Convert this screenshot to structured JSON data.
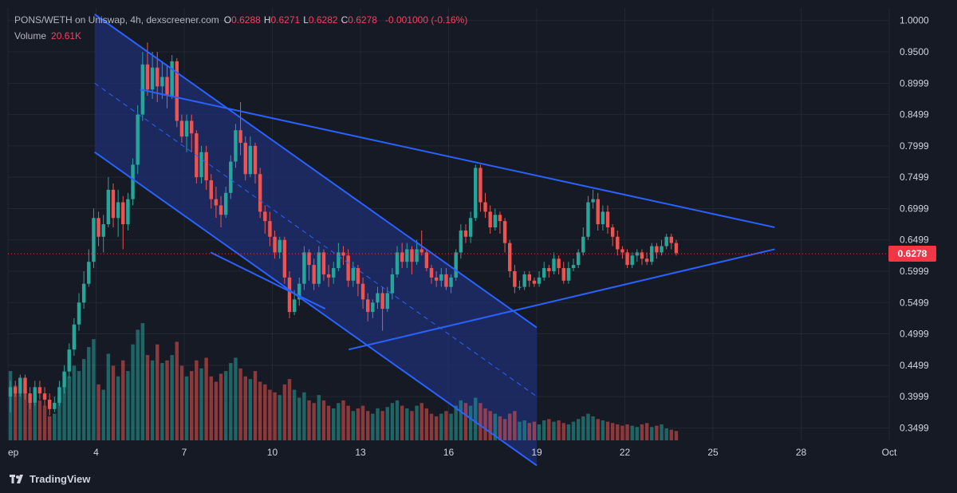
{
  "header": {
    "pair": "PONS/WETH on Uniswap, 4h, dexscreener.com",
    "ohlc": [
      {
        "key": "O",
        "value": "0.6288"
      },
      {
        "key": "H",
        "value": "0.6271"
      },
      {
        "key": "L",
        "value": "0.6282"
      },
      {
        "key": "C",
        "value": "0.6278"
      }
    ],
    "change": "-0.001000 (-0.16%)",
    "volume_label": "Volume",
    "volume_value": "20.61K"
  },
  "brand": "TradingView",
  "last_price_label": "0.6278",
  "colors": {
    "up": "#26a69a",
    "down": "#ef5350",
    "drawing": "#2962ff",
    "channel_fill": "#1e2f73",
    "price_tag": "#f23645",
    "background": "#161a25"
  },
  "chart_data": {
    "type": "candlestick",
    "timeframe": "4h",
    "last_price": 0.6278,
    "ylim": [
      0.33,
      1.02
    ],
    "y_ticks": [
      "1.0000",
      "0.9500",
      "0.8999",
      "0.8499",
      "0.7999",
      "0.7499",
      "0.6999",
      "0.6499",
      "0.5999",
      "0.5499",
      "0.4999",
      "0.4499",
      "0.3999",
      "0.3499"
    ],
    "x_ticks": [
      "ep",
      "4",
      "7",
      "10",
      "13",
      "16",
      "19",
      "22",
      "25",
      "28",
      "Oct"
    ],
    "x_range_days": [
      1,
      31
    ],
    "candles": [
      [
        0.3999,
        0.4149,
        0.3749,
        0.4249
      ],
      [
        0.4149,
        0.4049,
        0.3999,
        0.4249
      ],
      [
        0.4049,
        0.4299,
        0.3999,
        0.4349
      ],
      [
        0.4299,
        0.4049,
        0.3949,
        0.4349
      ],
      [
        0.4049,
        0.3899,
        0.3799,
        0.4149
      ],
      [
        0.3899,
        0.4149,
        0.3849,
        0.4249
      ],
      [
        0.4149,
        0.4049,
        0.3949,
        0.4249
      ],
      [
        0.4049,
        0.3949,
        0.3849,
        0.4149
      ],
      [
        0.3949,
        0.3799,
        0.3699,
        0.4049
      ],
      [
        0.3799,
        0.3899,
        0.3749,
        0.3999
      ],
      [
        0.3899,
        0.4149,
        0.3849,
        0.4249
      ],
      [
        0.4149,
        0.4399,
        0.4049,
        0.4499
      ],
      [
        0.4399,
        0.4749,
        0.4299,
        0.4849
      ],
      [
        0.4749,
        0.5149,
        0.4649,
        0.5249
      ],
      [
        0.5149,
        0.5499,
        0.5049,
        0.5649
      ],
      [
        0.5499,
        0.5799,
        0.5399,
        0.5999
      ],
      [
        0.5799,
        0.6149,
        0.5749,
        0.6349
      ],
      [
        0.6149,
        0.6849,
        0.6049,
        0.6999
      ],
      [
        0.6849,
        0.6549,
        0.6399,
        0.6949
      ],
      [
        0.6549,
        0.6749,
        0.6299,
        0.6899
      ],
      [
        0.6749,
        0.7299,
        0.6699,
        0.7499
      ],
      [
        0.7299,
        0.6849,
        0.6699,
        0.7399
      ],
      [
        0.6849,
        0.7099,
        0.6549,
        0.7299
      ],
      [
        0.7099,
        0.6749,
        0.6349,
        0.7199
      ],
      [
        0.6749,
        0.7149,
        0.6649,
        0.7249
      ],
      [
        0.7149,
        0.7699,
        0.7049,
        0.7799
      ],
      [
        0.7699,
        0.8499,
        0.7549,
        0.8649
      ],
      [
        0.8499,
        0.9299,
        0.8399,
        0.9499
      ],
      [
        0.9299,
        0.8899,
        0.8799,
        0.9649
      ],
      [
        0.8899,
        0.9249,
        0.8749,
        0.9499
      ],
      [
        0.9249,
        0.8949,
        0.8699,
        0.9499
      ],
      [
        0.8949,
        0.9099,
        0.8749,
        0.9349
      ],
      [
        0.9099,
        0.8799,
        0.8599,
        0.9299
      ],
      [
        0.8799,
        0.9349,
        0.8749,
        0.9449
      ],
      [
        0.9349,
        0.8399,
        0.8299,
        0.9399
      ],
      [
        0.8399,
        0.8149,
        0.8049,
        0.8499
      ],
      [
        0.8149,
        0.8399,
        0.7899,
        0.8499
      ],
      [
        0.8399,
        0.8199,
        0.7899,
        0.8499
      ],
      [
        0.8199,
        0.7499,
        0.7399,
        0.8249
      ],
      [
        0.7499,
        0.7899,
        0.7399,
        0.7999
      ],
      [
        0.7899,
        0.7449,
        0.7299,
        0.7999
      ],
      [
        0.7449,
        0.7149,
        0.6999,
        0.7549
      ],
      [
        0.7149,
        0.7049,
        0.6849,
        0.7349
      ],
      [
        0.7049,
        0.6899,
        0.6699,
        0.7199
      ],
      [
        0.6899,
        0.7249,
        0.6849,
        0.7349
      ],
      [
        0.7249,
        0.7749,
        0.7149,
        0.7849
      ],
      [
        0.7749,
        0.8249,
        0.7649,
        0.8349
      ],
      [
        0.8249,
        0.8049,
        0.7849,
        0.8699
      ],
      [
        0.8049,
        0.7549,
        0.7449,
        0.8149
      ],
      [
        0.7549,
        0.7999,
        0.7499,
        0.8149
      ],
      [
        0.7999,
        0.7549,
        0.7399,
        0.8049
      ],
      [
        0.7549,
        0.6949,
        0.6849,
        0.7649
      ],
      [
        0.6949,
        0.6799,
        0.6599,
        0.7049
      ],
      [
        0.6799,
        0.6549,
        0.6399,
        0.6949
      ],
      [
        0.6549,
        0.6299,
        0.6199,
        0.6649
      ],
      [
        0.6299,
        0.6499,
        0.6199,
        0.6549
      ],
      [
        0.6499,
        0.5899,
        0.5799,
        0.6549
      ],
      [
        0.5899,
        0.5349,
        0.5249,
        0.5999
      ],
      [
        0.5349,
        0.5549,
        0.5299,
        0.5699
      ],
      [
        0.5549,
        0.5799,
        0.5449,
        0.5899
      ],
      [
        0.5799,
        0.6299,
        0.5699,
        0.6399
      ],
      [
        0.6299,
        0.6099,
        0.5849,
        0.6349
      ],
      [
        0.6099,
        0.5799,
        0.5699,
        0.6199
      ],
      [
        0.5799,
        0.6299,
        0.5749,
        0.6399
      ],
      [
        0.6299,
        0.5949,
        0.5849,
        0.6349
      ],
      [
        0.5949,
        0.5899,
        0.5749,
        0.6099
      ],
      [
        0.5899,
        0.6049,
        0.5799,
        0.6149
      ],
      [
        0.6049,
        0.6299,
        0.5999,
        0.6449
      ],
      [
        0.6299,
        0.6249,
        0.6099,
        0.6399
      ],
      [
        0.6249,
        0.5849,
        0.5749,
        0.6349
      ],
      [
        0.5849,
        0.6049,
        0.5749,
        0.6149
      ],
      [
        0.6049,
        0.5799,
        0.5599,
        0.6099
      ],
      [
        0.5799,
        0.5549,
        0.5399,
        0.5899
      ],
      [
        0.5549,
        0.5349,
        0.5199,
        0.5649
      ],
      [
        0.5349,
        0.5499,
        0.5249,
        0.5549
      ],
      [
        0.5499,
        0.5649,
        0.5399,
        0.5749
      ],
      [
        0.5649,
        0.5399,
        0.5049,
        0.5749
      ],
      [
        0.5399,
        0.5649,
        0.5349,
        0.5749
      ],
      [
        0.5649,
        0.5949,
        0.5549,
        0.6049
      ],
      [
        0.5949,
        0.6299,
        0.5899,
        0.6399
      ],
      [
        0.6299,
        0.6149,
        0.6049,
        0.6449
      ],
      [
        0.6149,
        0.6349,
        0.6049,
        0.6449
      ],
      [
        0.6349,
        0.6149,
        0.5949,
        0.6399
      ],
      [
        0.6149,
        0.6349,
        0.6099,
        0.6499
      ],
      [
        0.6349,
        0.6299,
        0.6249,
        0.6649
      ],
      [
        0.6299,
        0.6049,
        0.5999,
        0.6349
      ],
      [
        0.6049,
        0.5899,
        0.5799,
        0.6099
      ],
      [
        0.5899,
        0.5849,
        0.5749,
        0.5999
      ],
      [
        0.5849,
        0.5949,
        0.5749,
        0.6049
      ],
      [
        0.5949,
        0.5749,
        0.5699,
        0.6049
      ],
      [
        0.5749,
        0.5899,
        0.5649,
        0.5949
      ],
      [
        0.5899,
        0.6299,
        0.5849,
        0.6349
      ],
      [
        0.6299,
        0.6649,
        0.6199,
        0.6749
      ],
      [
        0.6649,
        0.6549,
        0.6449,
        0.6749
      ],
      [
        0.6549,
        0.6849,
        0.6449,
        0.6949
      ],
      [
        0.6849,
        0.7649,
        0.6799,
        0.7699
      ],
      [
        0.7649,
        0.7099,
        0.6949,
        0.7699
      ],
      [
        0.7099,
        0.6949,
        0.6849,
        0.7249
      ],
      [
        0.6949,
        0.6699,
        0.6599,
        0.7049
      ],
      [
        0.6699,
        0.6899,
        0.6649,
        0.6999
      ],
      [
        0.6899,
        0.6799,
        0.6599,
        0.6949
      ],
      [
        0.6799,
        0.6449,
        0.6299,
        0.6849
      ],
      [
        0.6449,
        0.5999,
        0.5899,
        0.6499
      ],
      [
        0.5999,
        0.5749,
        0.5649,
        0.6099
      ],
      [
        0.5749,
        0.5749,
        0.5699,
        0.5849
      ],
      [
        0.5749,
        0.5949,
        0.5699,
        0.5999
      ],
      [
        0.5949,
        0.5849,
        0.5749,
        0.5999
      ],
      [
        0.5849,
        0.5799,
        0.5749,
        0.5899
      ],
      [
        0.5799,
        0.5899,
        0.5749,
        0.5999
      ],
      [
        0.5899,
        0.6049,
        0.5849,
        0.6149
      ],
      [
        0.6049,
        0.5999,
        0.5899,
        0.6099
      ],
      [
        0.5999,
        0.6199,
        0.5949,
        0.6299
      ],
      [
        0.6199,
        0.6049,
        0.5949,
        0.6249
      ],
      [
        0.6049,
        0.5849,
        0.5799,
        0.6149
      ],
      [
        0.5849,
        0.6049,
        0.5799,
        0.6149
      ],
      [
        0.6049,
        0.6099,
        0.5999,
        0.6199
      ],
      [
        0.6099,
        0.6299,
        0.6049,
        0.6349
      ],
      [
        0.6299,
        0.6549,
        0.6249,
        0.6699
      ],
      [
        0.6549,
        0.7099,
        0.6499,
        0.7199
      ],
      [
        0.7099,
        0.7149,
        0.6999,
        0.7299
      ],
      [
        0.7149,
        0.6749,
        0.6649,
        0.7249
      ],
      [
        0.6749,
        0.6949,
        0.6649,
        0.7049
      ],
      [
        0.6949,
        0.6699,
        0.6599,
        0.7049
      ],
      [
        0.6699,
        0.6549,
        0.6399,
        0.6749
      ],
      [
        0.6549,
        0.6349,
        0.6249,
        0.6649
      ],
      [
        0.6349,
        0.6299,
        0.6199,
        0.6399
      ],
      [
        0.6299,
        0.6099,
        0.6049,
        0.6349
      ],
      [
        0.6099,
        0.6249,
        0.6049,
        0.6299
      ],
      [
        0.6249,
        0.6299,
        0.6149,
        0.6349
      ],
      [
        0.6299,
        0.6199,
        0.6099,
        0.6349
      ],
      [
        0.6199,
        0.6149,
        0.6099,
        0.6299
      ],
      [
        0.6149,
        0.6399,
        0.6099,
        0.6449
      ],
      [
        0.6399,
        0.6299,
        0.6199,
        0.6449
      ],
      [
        0.6299,
        0.6399,
        0.6249,
        0.6499
      ],
      [
        0.6399,
        0.6549,
        0.6349,
        0.6599
      ],
      [
        0.6549,
        0.6449,
        0.6349,
        0.6599
      ],
      [
        0.6449,
        0.6288,
        0.6249,
        0.6499
      ]
    ],
    "volumes": [
      520,
      410,
      460,
      390,
      320,
      280,
      300,
      260,
      180,
      200,
      330,
      410,
      480,
      560,
      520,
      610,
      700,
      760,
      420,
      380,
      650,
      560,
      480,
      600,
      520,
      720,
      830,
      880,
      640,
      600,
      720,
      580,
      600,
      640,
      740,
      560,
      480,
      520,
      600,
      540,
      620,
      480,
      440,
      500,
      520,
      580,
      620,
      540,
      480,
      460,
      520,
      440,
      420,
      380,
      360,
      340,
      420,
      460,
      380,
      320,
      360,
      300,
      280,
      340,
      300,
      260,
      240,
      280,
      300,
      260,
      220,
      240,
      260,
      220,
      200,
      240,
      220,
      250,
      280,
      300,
      260,
      240,
      220,
      260,
      280,
      240,
      200,
      180,
      200,
      220,
      200,
      260,
      300,
      280,
      260,
      320,
      280,
      240,
      220,
      200,
      180,
      160,
      200,
      220,
      140,
      150,
      130,
      140,
      120,
      150,
      160,
      140,
      150,
      130,
      120,
      140,
      160,
      180,
      200,
      180,
      160,
      150,
      140,
      130,
      120,
      110,
      120,
      110,
      100,
      120,
      130,
      100,
      110,
      120,
      90,
      80,
      70
    ],
    "drawings": [
      {
        "kind": "parallel-channel",
        "lines": [
          [
            [
              3.95,
              1.01
            ],
            [
              19.0,
              0.51
            ]
          ],
          [
            [
              3.95,
              0.79
            ],
            [
              19.0,
              0.29
            ]
          ]
        ],
        "midline": [
          [
            3.95,
            0.9
          ],
          [
            19.0,
            0.4
          ]
        ]
      },
      {
        "kind": "trend-line",
        "points": [
          [
            5.5,
            0.89
          ],
          [
            27.1,
            0.67
          ]
        ]
      },
      {
        "kind": "trend-line",
        "points": [
          [
            12.6,
            0.475
          ],
          [
            27.1,
            0.635
          ]
        ]
      },
      {
        "kind": "trend-line",
        "points": [
          [
            7.9,
            0.63
          ],
          [
            11.8,
            0.54
          ]
        ]
      }
    ]
  }
}
